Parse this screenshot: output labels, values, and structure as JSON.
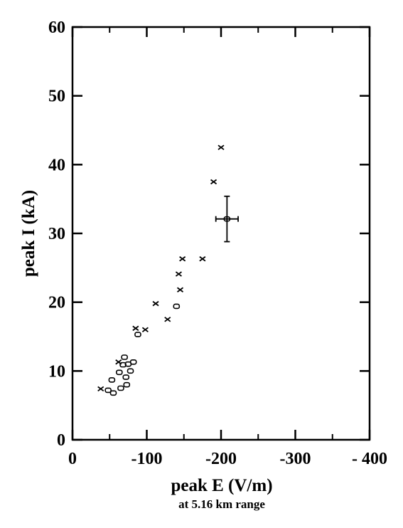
{
  "chart_data": {
    "type": "scatter",
    "title": "",
    "xlabel": "peak E (V/m)",
    "xlabel_sub": "at 5.16 km range",
    "ylabel": "peak I (kA)",
    "xlim": [
      0,
      400
    ],
    "ylim": [
      0,
      60
    ],
    "x_ticks": [
      0,
      100,
      200,
      300,
      400
    ],
    "x_tick_labels": [
      "0",
      "-100",
      "-200",
      "-300",
      "- 400"
    ],
    "y_ticks": [
      0,
      10,
      20,
      30,
      40,
      50,
      60
    ],
    "y_tick_labels": [
      "0",
      "10",
      "20",
      "30",
      "40",
      "50",
      "60"
    ],
    "grid": false,
    "series": [
      {
        "marker": "x",
        "points": [
          [
            38,
            7.4
          ],
          [
            62,
            11.3
          ],
          [
            85,
            16.2
          ],
          [
            98,
            16.0
          ],
          [
            112,
            19.8
          ],
          [
            128,
            17.5
          ],
          [
            143,
            24.1
          ],
          [
            145,
            21.8
          ],
          [
            148,
            26.3
          ],
          [
            175,
            26.3
          ],
          [
            190,
            37.5
          ],
          [
            200,
            42.5
          ]
        ]
      },
      {
        "marker": "o",
        "points": [
          [
            48,
            7.2
          ],
          [
            53,
            8.7
          ],
          [
            55,
            6.8
          ],
          [
            63,
            9.8
          ],
          [
            65,
            7.5
          ],
          [
            68,
            10.9
          ],
          [
            70,
            12.0
          ],
          [
            72,
            9.1
          ],
          [
            73,
            8.0
          ],
          [
            75,
            11.0
          ],
          [
            78,
            10.0
          ],
          [
            82,
            11.3
          ],
          [
            88,
            15.3
          ],
          [
            140,
            19.4
          ],
          [
            208,
            32.1
          ]
        ]
      }
    ],
    "error_bar": {
      "x": 208,
      "y": 32.1,
      "xerr": 15,
      "yerr": 3.3
    }
  }
}
